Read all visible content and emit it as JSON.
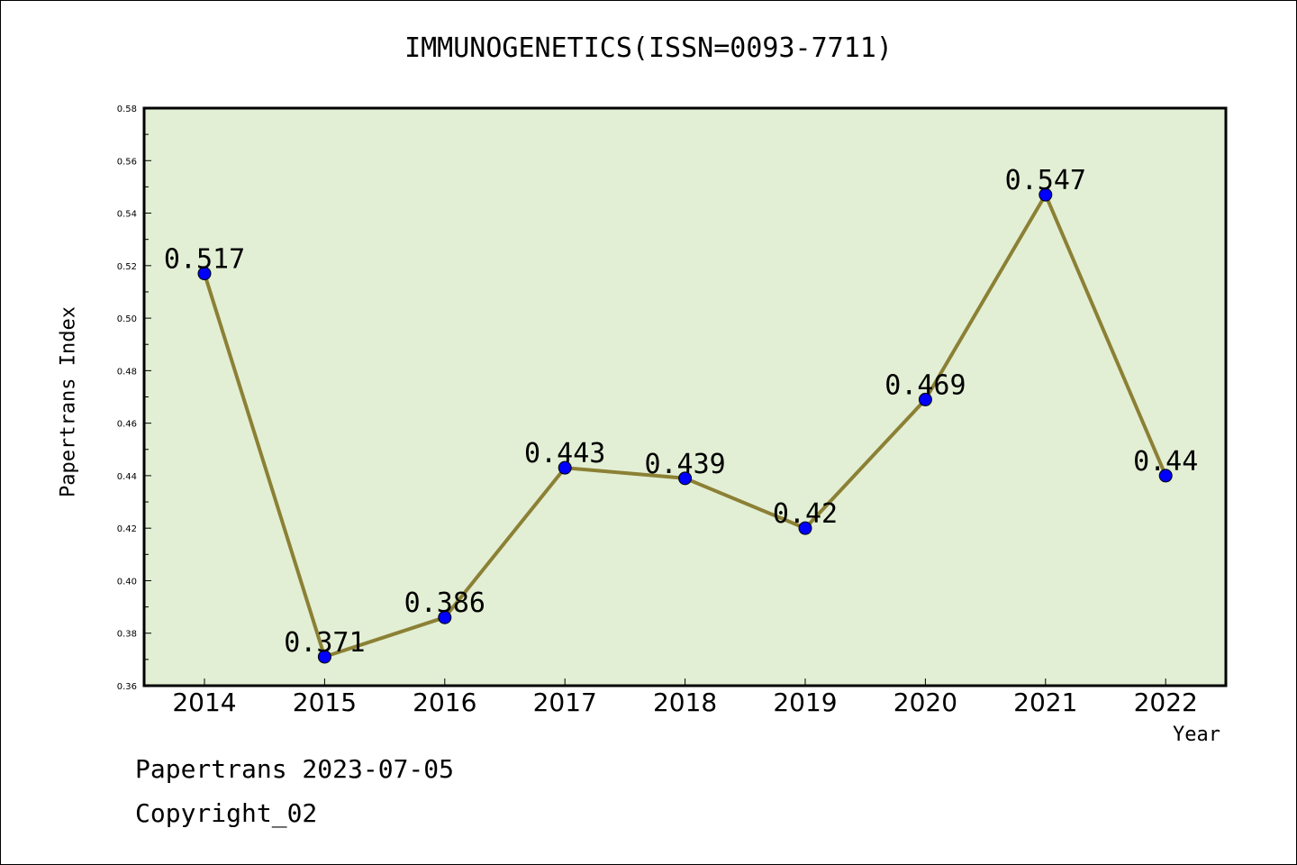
{
  "chart_data": {
    "type": "line",
    "title": "IMMUNOGENETICS(ISSN=0093-7711)",
    "xlabel": "Year",
    "ylabel": "Papertrans Index",
    "categories": [
      "2014",
      "2015",
      "2016",
      "2017",
      "2018",
      "2019",
      "2020",
      "2021",
      "2022"
    ],
    "values": [
      0.517,
      0.371,
      0.386,
      0.443,
      0.439,
      0.42,
      0.469,
      0.547,
      0.44
    ],
    "data_labels": [
      "0.517",
      "0.371",
      "0.386",
      "0.443",
      "0.439",
      "0.42",
      "0.469",
      "0.547",
      "0.44"
    ],
    "ylim": [
      0.36,
      0.58
    ],
    "yticks": [
      "0.36",
      "0.38",
      "0.40",
      "0.42",
      "0.44",
      "0.46",
      "0.48",
      "0.50",
      "0.52",
      "0.54",
      "0.56",
      "0.58"
    ],
    "grid": false,
    "colors": {
      "plot_background": "#e2efd4",
      "line": "#8b8035",
      "marker": "#0000ff"
    }
  },
  "footer": {
    "line1": "Papertrans 2023-07-05",
    "line2": "Copyright_02"
  }
}
